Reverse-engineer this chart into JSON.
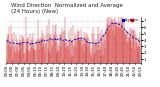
{
  "title": "Wind Direction  Normalized and Average",
  "subtitle": "(24 Hours) (New)",
  "bg_color": "#ffffff",
  "plot_bg": "#ffffff",
  "grid_color": "#aaaaaa",
  "bar_color": "#cc0000",
  "avg_color": "#0000cc",
  "n_points": 288,
  "ylim": [
    0.5,
    7.5
  ],
  "yticks": [
    1,
    2,
    3,
    4,
    5,
    6,
    7
  ],
  "title_fontsize": 4.0,
  "tick_fontsize": 2.8,
  "legend_dot_color": "#0000cc",
  "legend_bar_color": "#cc0000",
  "seed": 17
}
